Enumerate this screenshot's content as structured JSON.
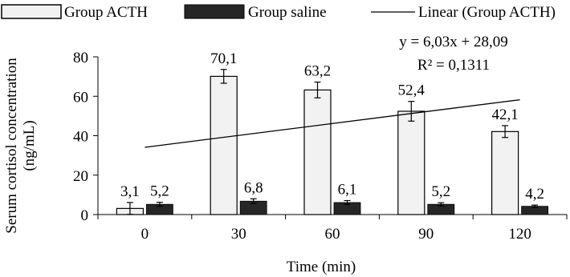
{
  "chart_data": {
    "type": "bar",
    "categories": [
      "0",
      "30",
      "60",
      "90",
      "120"
    ],
    "series": [
      {
        "name": "Group ACTH",
        "values": [
          3.1,
          70.1,
          63.2,
          52.4,
          42.1
        ],
        "labels": [
          "3,1",
          "70,1",
          "63,2",
          "52,4",
          "42,1"
        ],
        "error": [
          3.0,
          3.5,
          4.0,
          5.0,
          3.0
        ],
        "color": "#f2f2f2"
      },
      {
        "name": "Group saline",
        "values": [
          5.2,
          6.8,
          6.1,
          5.2,
          4.2
        ],
        "labels": [
          "5,2",
          "6,8",
          "6,1",
          "5,2",
          "4,2"
        ],
        "error": [
          1.0,
          1.2,
          1.0,
          0.8,
          0.6
        ],
        "color": "#262626"
      }
    ],
    "trendline": {
      "name": "Linear (Group ACTH)",
      "slope": 6.03,
      "intercept": 28.09,
      "equation": "y = 6,03x + 28,09",
      "r_squared": "R² = 0,1311"
    },
    "xlabel": "Time (min)",
    "ylabel_line1": "Serum cortisol concentration",
    "ylabel_line2": "(ng/mL)",
    "ylim": [
      0,
      80
    ],
    "yticks": [
      "0",
      "20",
      "40",
      "60",
      "80"
    ],
    "grid": false,
    "legend_position": "top"
  }
}
